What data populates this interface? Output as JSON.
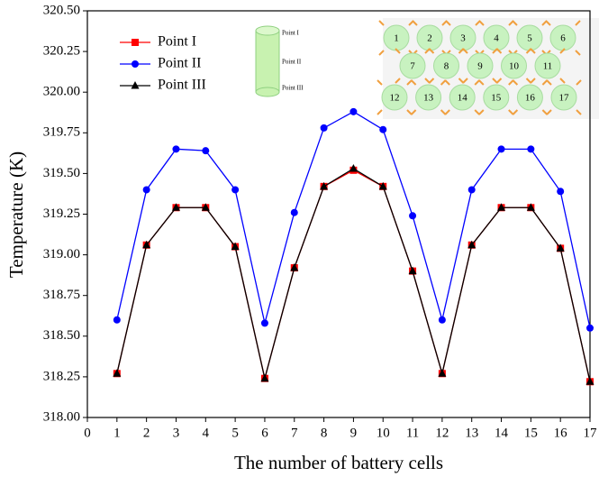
{
  "chart_data": {
    "type": "line",
    "xlabel": "The number of battery cells",
    "ylabel": "Temperature (K)",
    "x": [
      1,
      2,
      3,
      4,
      5,
      6,
      7,
      8,
      9,
      10,
      11,
      12,
      13,
      14,
      15,
      16,
      17
    ],
    "series": [
      {
        "name": "Point I",
        "color": "#ff0000",
        "marker": "square",
        "values": [
          318.27,
          319.06,
          319.29,
          319.29,
          319.05,
          318.24,
          318.92,
          319.42,
          319.52,
          319.42,
          318.9,
          318.27,
          319.06,
          319.29,
          319.29,
          319.04,
          318.22
        ]
      },
      {
        "name": "Point II",
        "color": "#0000ff",
        "marker": "circle",
        "values": [
          318.6,
          319.4,
          319.65,
          319.64,
          319.4,
          318.58,
          319.26,
          319.78,
          319.88,
          319.77,
          319.24,
          318.6,
          319.4,
          319.65,
          319.65,
          319.39,
          318.55
        ]
      },
      {
        "name": "Point III",
        "color": "#000000",
        "marker": "triangle",
        "values": [
          318.27,
          319.06,
          319.29,
          319.29,
          319.05,
          318.24,
          318.92,
          319.42,
          319.53,
          319.42,
          318.9,
          318.27,
          319.06,
          319.29,
          319.29,
          319.04,
          318.22
        ]
      }
    ],
    "xlim": [
      0,
      17
    ],
    "xticks": [
      0,
      1,
      2,
      3,
      4,
      5,
      6,
      7,
      8,
      9,
      10,
      11,
      12,
      13,
      14,
      15,
      16,
      17
    ],
    "ylim": [
      318,
      320.5
    ],
    "yticks": [
      {
        "value": 318,
        "label": "318.00"
      },
      {
        "value": 318.25,
        "label": "318.25"
      },
      {
        "value": 318.5,
        "label": "318.50"
      },
      {
        "value": 318.75,
        "label": "318.75"
      },
      {
        "value": 319,
        "label": "319.00"
      },
      {
        "value": 319.25,
        "label": "319.25"
      },
      {
        "value": 319.5,
        "label": "319.50"
      },
      {
        "value": 319.75,
        "label": "319.75"
      },
      {
        "value": 320,
        "label": "320.00"
      },
      {
        "value": 320.25,
        "label": "320.25"
      },
      {
        "value": 320.5,
        "label": "320.50"
      }
    ],
    "cell_rows": [
      [
        1,
        2,
        3,
        4,
        5,
        6
      ],
      [
        7,
        8,
        9,
        10,
        11
      ],
      [
        12,
        13,
        14,
        15,
        16,
        17
      ]
    ]
  }
}
